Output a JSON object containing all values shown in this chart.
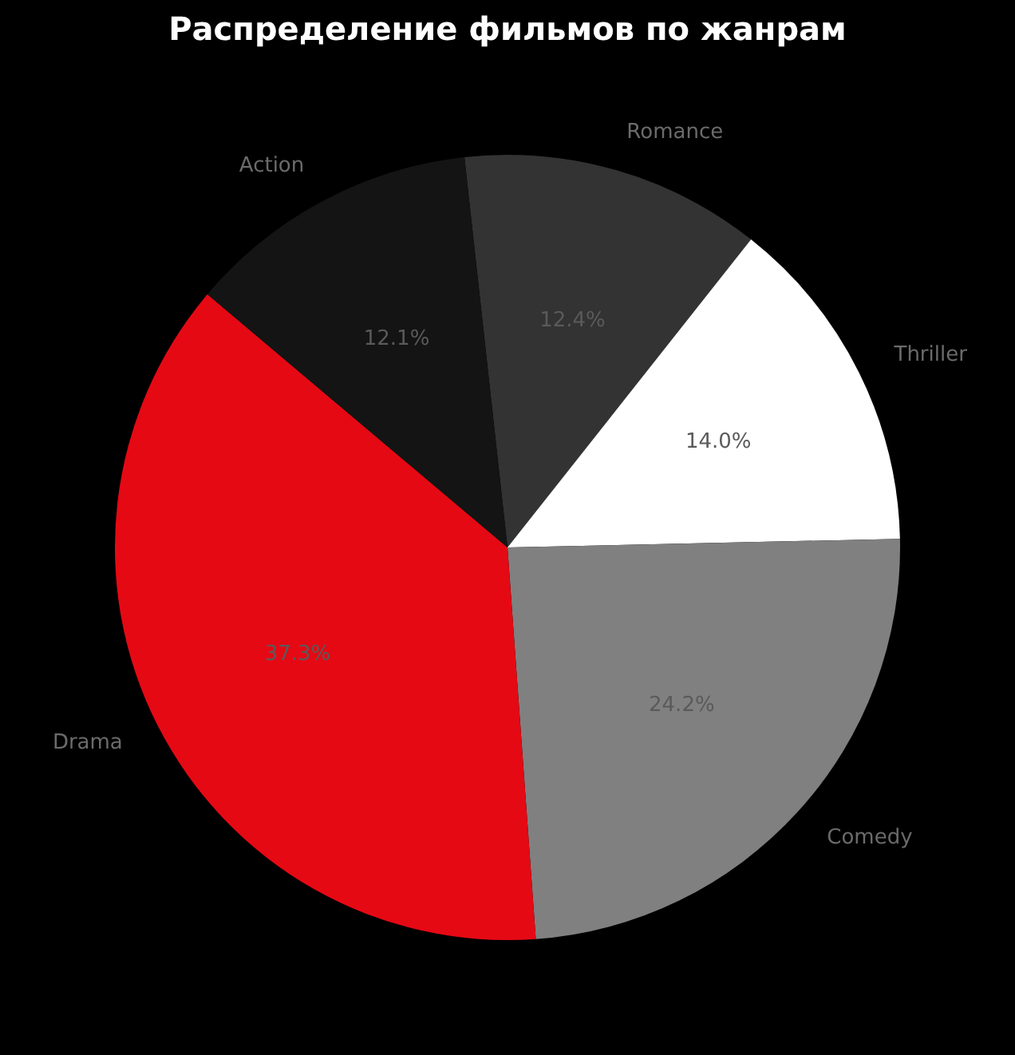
{
  "chart_data": {
    "type": "pie",
    "title": "Распределение фильмов по жанрам",
    "categories": [
      "Romance",
      "Thriller",
      "Comedy",
      "Drama",
      "Action"
    ],
    "values": [
      12.4,
      14.0,
      24.2,
      37.3,
      12.1
    ],
    "value_labels": [
      "12.4%",
      "14.0%",
      "24.2%",
      "37.3%",
      "12.1%"
    ],
    "colors": [
      "#333333",
      "#ffffff",
      "#808080",
      "#e50914",
      "#141414"
    ],
    "legend": false
  }
}
